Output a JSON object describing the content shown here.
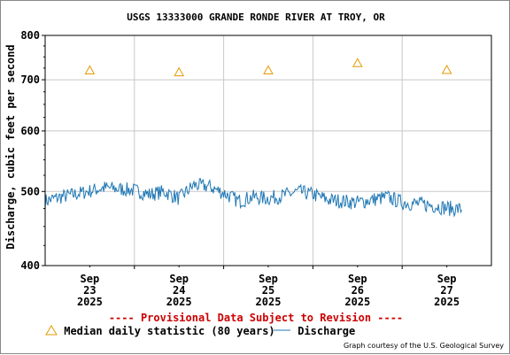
{
  "chart_data": {
    "type": "line",
    "title": "USGS 13333000 GRANDE RONDE RIVER AT TROY, OR",
    "ylabel": "Discharge, cubic feet per second",
    "xlabel": "",
    "y_scale": "log",
    "ylim": [
      400,
      800
    ],
    "y_ticks": [
      "400",
      "500",
      "600",
      "700",
      "800"
    ],
    "xlim": [
      "2025-09-22 12:00",
      "2025-09-27 12:00"
    ],
    "x_ticks": [
      {
        "month": "Sep",
        "day": "23",
        "year": "2025"
      },
      {
        "month": "Sep",
        "day": "24",
        "year": "2025"
      },
      {
        "month": "Sep",
        "day": "25",
        "year": "2025"
      },
      {
        "month": "Sep",
        "day": "26",
        "year": "2025"
      },
      {
        "month": "Sep",
        "day": "27",
        "year": "2025"
      }
    ],
    "grid": true,
    "series": [
      {
        "name": "Discharge",
        "color": "#1f77b4",
        "x": [
          "2025-09-22 12:00",
          "2025-09-22 16:00",
          "2025-09-22 20:00",
          "2025-09-23 00:00",
          "2025-09-23 04:00",
          "2025-09-23 08:00",
          "2025-09-23 12:00",
          "2025-09-23 16:00",
          "2025-09-23 20:00",
          "2025-09-24 00:00",
          "2025-09-24 04:00",
          "2025-09-24 08:00",
          "2025-09-24 12:00",
          "2025-09-24 16:00",
          "2025-09-24 20:00",
          "2025-09-25 00:00",
          "2025-09-25 04:00",
          "2025-09-25 08:00",
          "2025-09-25 12:00",
          "2025-09-25 16:00",
          "2025-09-25 20:00",
          "2025-09-26 00:00",
          "2025-09-26 04:00",
          "2025-09-26 08:00",
          "2025-09-26 12:00",
          "2025-09-26 16:00",
          "2025-09-26 20:00",
          "2025-09-27 00:00",
          "2025-09-27 04:00"
        ],
        "y": [
          488,
          494,
          498,
          503,
          508,
          506,
          504,
          498,
          502,
          492,
          512,
          510,
          500,
          488,
          494,
          492,
          496,
          502,
          498,
          490,
          488,
          486,
          490,
          494,
          486,
          484,
          482,
          478,
          476
        ]
      },
      {
        "name": "Median daily statistic (80 years)",
        "color": "#e69a00",
        "marker": "triangle",
        "x": [
          "2025-09-23 00:00",
          "2025-09-24 00:00",
          "2025-09-25 00:00",
          "2025-09-26 00:00",
          "2025-09-27 00:00"
        ],
        "y": [
          720,
          716,
          720,
          736,
          721
        ]
      }
    ],
    "provisional_note": "---- Provisional Data Subject to Revision ----",
    "courtesy": "Graph courtesy of the U.S. Geological Survey"
  }
}
